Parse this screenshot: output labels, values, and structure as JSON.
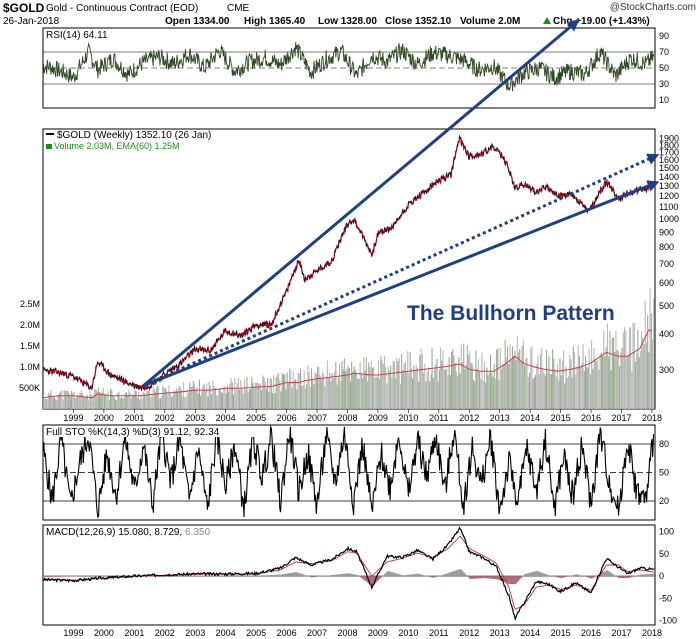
{
  "header": {
    "symbol": "$GOLD",
    "name": "Gold - Continuous Contract (EOD)",
    "exchange": "CME",
    "date": "26-Jan-2018",
    "open": "Open 1334.00",
    "high": "High 1365.40",
    "low": "Low 1328.00",
    "close": "Close 1352.10",
    "volume": "Volume 2.0M",
    "chg": "Chg +19.00 (+1.43%)",
    "chg_arrow": "up-arrow-icon",
    "watermark": "@StockCharts.com"
  },
  "colors": {
    "price_line": "#8a0f24",
    "annotation": "#1f3f80",
    "volume_bar": "#b9b9b9",
    "volume_bar_up": "#9aab94",
    "volume_ema": "#c83c50",
    "rsi_line": "#2f4a23",
    "sto_line": "#000000",
    "macd_line": "#000000",
    "histogram": "#9a9a9a",
    "up_green": "#1a8c1a"
  },
  "annotation_text": "The Bullhorn Pattern",
  "chart_data": [
    {
      "type": "line",
      "id": "rsi",
      "title": "RSI(14) 64.11",
      "y_ticks": [
        10,
        30,
        50,
        70,
        90
      ],
      "ylim": [
        0,
        100
      ],
      "reference_lines": [
        30,
        50,
        70
      ],
      "x": [
        "1998.2",
        "1998.7",
        "1999.0",
        "1999.5",
        "1999.8",
        "2000.3",
        "2000.8",
        "2001.3",
        "2001.8",
        "2002.3",
        "2002.8",
        "2003.3",
        "2003.8",
        "2004.3",
        "2004.8",
        "2005.3",
        "2005.8",
        "2006.3",
        "2006.8",
        "2007.3",
        "2007.8",
        "2008.3",
        "2008.8",
        "2009.3",
        "2009.8",
        "2010.3",
        "2010.8",
        "2011.3",
        "2011.8",
        "2012.3",
        "2012.8",
        "2013.3",
        "2013.8",
        "2014.3",
        "2014.8",
        "2015.3",
        "2015.8",
        "2016.3",
        "2016.8",
        "2017.3",
        "2017.8",
        "2018.07"
      ],
      "values": [
        52,
        44,
        38,
        70,
        48,
        62,
        42,
        57,
        64,
        55,
        68,
        50,
        72,
        46,
        58,
        63,
        54,
        76,
        45,
        61,
        71,
        40,
        66,
        58,
        72,
        55,
        69,
        66,
        60,
        48,
        52,
        28,
        44,
        50,
        38,
        46,
        42,
        70,
        40,
        62,
        55,
        64
      ]
    },
    {
      "type": "line",
      "id": "price",
      "title": "$GOLD (Weekly) 1352.10 (26 Jan)",
      "series_label": "$GOLD (Weekly) 1352.10 (26 Jan)",
      "volume_label": "Volume 2.03M, EMA(60) 1.25M",
      "scale": "log",
      "y_ticks": [
        300,
        400,
        500,
        600,
        700,
        800,
        900,
        1000,
        1100,
        1200,
        1300,
        1400,
        1500,
        1600,
        1700,
        1800,
        1900
      ],
      "volume_ticks": [
        "2.5M",
        "2.0M",
        "1.5M",
        "1.0M",
        "500K"
      ],
      "x_tick_labels": [
        "1999",
        "2000",
        "2001",
        "2002",
        "2003",
        "2004",
        "2005",
        "2006",
        "2007",
        "2008",
        "2009",
        "2010",
        "2011",
        "2012",
        "2013",
        "2014",
        "2015",
        "2016",
        "2017",
        "2018"
      ],
      "x": [
        1998.0,
        1998.5,
        1999.0,
        1999.6,
        1999.8,
        2000.2,
        2000.8,
        2001.2,
        2001.5,
        2002.0,
        2002.5,
        2003.0,
        2003.5,
        2004.0,
        2004.5,
        2005.0,
        2005.5,
        2006.0,
        2006.4,
        2006.6,
        2007.0,
        2007.5,
        2008.0,
        2008.2,
        2008.8,
        2009.0,
        2009.5,
        2010.0,
        2010.5,
        2011.0,
        2011.4,
        2011.68,
        2012.0,
        2012.4,
        2012.8,
        2013.2,
        2013.5,
        2013.8,
        2014.2,
        2014.5,
        2014.9,
        2015.3,
        2015.6,
        2015.95,
        2016.5,
        2016.9,
        2017.2,
        2017.6,
        2017.9,
        2018.07
      ],
      "values": [
        300,
        295,
        285,
        260,
        320,
        290,
        270,
        262,
        265,
        290,
        315,
        355,
        350,
        410,
        395,
        430,
        430,
        560,
        720,
        620,
        660,
        720,
        960,
        1000,
        750,
        890,
        940,
        1120,
        1230,
        1360,
        1420,
        1900,
        1650,
        1680,
        1780,
        1580,
        1280,
        1320,
        1240,
        1300,
        1200,
        1220,
        1150,
        1060,
        1350,
        1175,
        1230,
        1260,
        1280,
        1352
      ],
      "trendlines": [
        {
          "name": "upper",
          "style": "solid",
          "arrow": true,
          "x": [
            2001.3,
            2015.5
          ],
          "y": [
            265,
            4800
          ]
        },
        {
          "name": "middle",
          "style": "dotted",
          "arrow": true,
          "x": [
            2001.3,
            2018.1
          ],
          "y": [
            265,
            1650
          ]
        },
        {
          "name": "lower",
          "style": "solid",
          "arrow": true,
          "x": [
            2001.3,
            2018.1
          ],
          "y": [
            265,
            1330
          ]
        }
      ],
      "volume_values_m": [
        0.3,
        0.35,
        0.35,
        0.3,
        0.4,
        0.35,
        0.35,
        0.35,
        0.38,
        0.42,
        0.45,
        0.5,
        0.5,
        0.55,
        0.55,
        0.58,
        0.6,
        0.7,
        0.7,
        0.75,
        0.8,
        0.85,
        0.9,
        0.95,
        0.9,
        0.9,
        0.95,
        1.0,
        1.05,
        1.1,
        1.15,
        1.2,
        1.05,
        1.0,
        1.0,
        1.2,
        1.4,
        1.2,
        1.1,
        1.05,
        1.0,
        1.05,
        1.1,
        1.2,
        1.5,
        1.4,
        1.4,
        1.6,
        2.1,
        2.03
      ]
    },
    {
      "type": "line",
      "id": "sto",
      "title": "Full STO %K(14,3) %D(3) 91.12, 92.34",
      "y_ticks": [
        20,
        50,
        80
      ],
      "ylim": [
        0,
        100
      ],
      "reference_lines": [
        20,
        50,
        80
      ],
      "x": [
        1998.0,
        1998.3,
        1998.6,
        1998.9,
        1999.2,
        1999.5,
        1999.8,
        2000.1,
        2000.4,
        2000.7,
        2001.0,
        2001.3,
        2001.6,
        2001.9,
        2002.2,
        2002.5,
        2002.8,
        2003.1,
        2003.4,
        2003.7,
        2004.0,
        2004.3,
        2004.6,
        2004.9,
        2005.2,
        2005.5,
        2005.8,
        2006.1,
        2006.4,
        2006.7,
        2007.0,
        2007.3,
        2007.6,
        2007.9,
        2008.2,
        2008.5,
        2008.8,
        2009.1,
        2009.4,
        2009.7,
        2010.0,
        2010.3,
        2010.6,
        2010.9,
        2011.2,
        2011.5,
        2011.8,
        2012.1,
        2012.4,
        2012.7,
        2013.0,
        2013.3,
        2013.6,
        2013.9,
        2014.2,
        2014.5,
        2014.8,
        2015.1,
        2015.4,
        2015.7,
        2016.0,
        2016.3,
        2016.6,
        2016.9,
        2017.2,
        2017.5,
        2017.8,
        2018.07
      ],
      "values": [
        75,
        20,
        85,
        15,
        60,
        90,
        10,
        70,
        25,
        88,
        30,
        80,
        15,
        92,
        40,
        85,
        20,
        75,
        10,
        90,
        35,
        80,
        12,
        85,
        45,
        88,
        18,
        95,
        30,
        70,
        15,
        88,
        40,
        92,
        20,
        80,
        8,
        70,
        35,
        92,
        25,
        85,
        45,
        90,
        30,
        95,
        15,
        75,
        35,
        88,
        10,
        60,
        20,
        75,
        30,
        85,
        12,
        68,
        25,
        80,
        15,
        92,
        40,
        10,
        85,
        30,
        20,
        92
      ]
    },
    {
      "type": "line",
      "id": "macd",
      "title": "MACD(12,26,9) 15.080, 8.729, 6.350",
      "title_parts": [
        "MACD(12,26,9) 15.080, 8.729,",
        "6.350"
      ],
      "y_ticks": [
        100,
        50,
        0,
        -50,
        -100
      ],
      "ylim": [
        -110,
        115
      ],
      "x_tick_labels": [
        "1999",
        "2000",
        "2001",
        "2002",
        "2003",
        "2004",
        "2005",
        "2006",
        "2007",
        "2008",
        "2009",
        "2010",
        "2011",
        "2012",
        "2013",
        "2014",
        "2015",
        "2016",
        "2017",
        "2018"
      ],
      "x": [
        1998.0,
        1999.0,
        2000.0,
        2001.0,
        2002.0,
        2003.0,
        2004.0,
        2005.0,
        2005.8,
        2006.3,
        2006.8,
        2007.5,
        2008.0,
        2008.3,
        2008.8,
        2009.3,
        2009.8,
        2010.3,
        2010.8,
        2011.3,
        2011.7,
        2012.0,
        2012.5,
        2012.9,
        2013.3,
        2013.5,
        2013.8,
        2014.2,
        2014.6,
        2015.0,
        2015.5,
        2016.0,
        2016.5,
        2016.9,
        2017.2,
        2017.6,
        2018.07
      ],
      "series": [
        {
          "name": "MACD",
          "values": [
            -8,
            -10,
            -4,
            0,
            3,
            5,
            5,
            6,
            18,
            42,
            25,
            38,
            62,
            55,
            -25,
            45,
            42,
            58,
            38,
            70,
            108,
            55,
            40,
            20,
            -45,
            -95,
            -60,
            -12,
            -18,
            -35,
            -15,
            -38,
            40,
            20,
            5,
            18,
            15
          ]
        },
        {
          "name": "Signal",
          "values": [
            -6,
            -9,
            -5,
            -1,
            2,
            4,
            5,
            5,
            14,
            32,
            28,
            35,
            55,
            52,
            0,
            32,
            40,
            52,
            42,
            62,
            90,
            62,
            45,
            28,
            -25,
            -75,
            -65,
            -25,
            -20,
            -30,
            -20,
            -32,
            25,
            25,
            10,
            14,
            9
          ]
        }
      ]
    }
  ]
}
